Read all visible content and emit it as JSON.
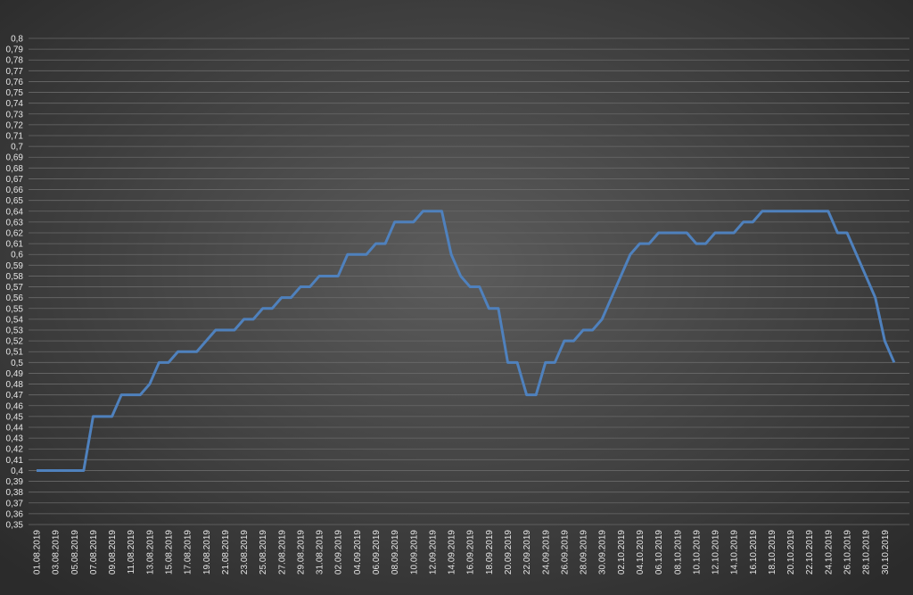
{
  "chart_data": {
    "type": "line",
    "categories": [
      "01.08.2019",
      null,
      "03.08.2019",
      null,
      "05.08.2019",
      null,
      "07.08.2019",
      null,
      "09.08.2019",
      null,
      "11.08.2019",
      null,
      "13.08.2019",
      null,
      "15.08.2019",
      null,
      "17.08.2019",
      null,
      "19.08.2019",
      null,
      "21.08.2019",
      null,
      "23.08.2019",
      null,
      "25.08.2019",
      null,
      "27.08.2019",
      null,
      "29.08.2019",
      null,
      "31.08.2019",
      null,
      "02.09.2019",
      null,
      "04.09.2019",
      null,
      "06.09.2019",
      null,
      "08.09.2019",
      null,
      "10.09.2019",
      null,
      "12.09.2019",
      null,
      "14.09.2019",
      null,
      "16.09.2019",
      null,
      "18.09.2019",
      null,
      "20.09.2019",
      null,
      "22.09.2019",
      null,
      "24.09.2019",
      null,
      "26.09.2019",
      null,
      "28.09.2019",
      null,
      "30.09.2019",
      null,
      "02.10.2019",
      null,
      "04.10.2019",
      null,
      "06.10.2019",
      null,
      "08.10.2019",
      null,
      "10.10.2019",
      null,
      "12.10.2019",
      null,
      "14.10.2019",
      null,
      "16.10.2019",
      null,
      "18.10.2019",
      null,
      "20.10.2019",
      null,
      "22.10.2019",
      null,
      "24.10.2019",
      null,
      "26.10.2019",
      null,
      "28.10.2019",
      null,
      "30.10.2019",
      null
    ],
    "series": [
      {
        "color": "#4f81bd",
        "values": [
          0.4,
          0.4,
          0.4,
          0.4,
          0.4,
          0.4,
          0.45,
          0.45,
          0.45,
          0.47,
          0.47,
          0.47,
          0.48,
          0.5,
          0.5,
          0.51,
          0.51,
          0.51,
          0.52,
          0.53,
          0.53,
          0.53,
          0.54,
          0.54,
          0.55,
          0.55,
          0.56,
          0.56,
          0.57,
          0.57,
          0.58,
          0.58,
          0.58,
          0.6,
          0.6,
          0.6,
          0.61,
          0.61,
          0.63,
          0.63,
          0.63,
          0.64,
          0.64,
          0.64,
          0.6,
          0.58,
          0.57,
          0.57,
          0.55,
          0.55,
          0.5,
          0.5,
          0.47,
          0.47,
          0.5,
          0.5,
          0.52,
          0.52,
          0.53,
          0.53,
          0.54,
          0.56,
          0.58,
          0.6,
          0.61,
          0.61,
          0.62,
          0.62,
          0.62,
          0.62,
          0.61,
          0.61,
          0.62,
          0.62,
          0.62,
          0.63,
          0.63,
          0.64,
          0.64,
          0.64,
          0.64,
          0.64,
          0.64,
          0.64,
          0.64,
          0.62,
          0.62,
          0.6,
          0.58,
          0.56,
          0.52,
          0.5
        ]
      }
    ],
    "ylim": [
      0.35,
      0.8
    ],
    "yticks": [
      {
        "value": 0.8,
        "label": "0,8"
      },
      {
        "value": 0.79,
        "label": "0,79"
      },
      {
        "value": 0.78,
        "label": "0,78"
      },
      {
        "value": 0.77,
        "label": "0,77"
      },
      {
        "value": 0.76,
        "label": "0,76"
      },
      {
        "value": 0.75,
        "label": "0,75"
      },
      {
        "value": 0.74,
        "label": "0,74"
      },
      {
        "value": 0.73,
        "label": "0,73"
      },
      {
        "value": 0.72,
        "label": "0,72"
      },
      {
        "value": 0.71,
        "label": "0,71"
      },
      {
        "value": 0.7,
        "label": "0,7"
      },
      {
        "value": 0.69,
        "label": "0,69"
      },
      {
        "value": 0.68,
        "label": "0,68"
      },
      {
        "value": 0.67,
        "label": "0,67"
      },
      {
        "value": 0.66,
        "label": "0,66"
      },
      {
        "value": 0.65,
        "label": "0,65"
      },
      {
        "value": 0.64,
        "label": "0,64"
      },
      {
        "value": 0.63,
        "label": "0,63"
      },
      {
        "value": 0.62,
        "label": "0,62"
      },
      {
        "value": 0.61,
        "label": "0,61"
      },
      {
        "value": 0.6,
        "label": "0,6"
      },
      {
        "value": 0.59,
        "label": "0,59"
      },
      {
        "value": 0.58,
        "label": "0,58"
      },
      {
        "value": 0.57,
        "label": "0,57"
      },
      {
        "value": 0.56,
        "label": "0,56"
      },
      {
        "value": 0.55,
        "label": "0,55"
      },
      {
        "value": 0.54,
        "label": "0,54"
      },
      {
        "value": 0.53,
        "label": "0,53"
      },
      {
        "value": 0.52,
        "label": "0,52"
      },
      {
        "value": 0.51,
        "label": "0,51"
      },
      {
        "value": 0.5,
        "label": "0,5"
      },
      {
        "value": 0.49,
        "label": "0,49"
      },
      {
        "value": 0.48,
        "label": "0,48"
      },
      {
        "value": 0.47,
        "label": "0,47"
      },
      {
        "value": 0.46,
        "label": "0,46"
      },
      {
        "value": 0.45,
        "label": "0,45"
      },
      {
        "value": 0.44,
        "label": "0,44"
      },
      {
        "value": 0.43,
        "label": "0,43"
      },
      {
        "value": 0.42,
        "label": "0,42"
      },
      {
        "value": 0.41,
        "label": "0,41"
      },
      {
        "value": 0.4,
        "label": "0,4"
      },
      {
        "value": 0.39,
        "label": "0,39"
      },
      {
        "value": 0.38,
        "label": "0,38"
      },
      {
        "value": 0.37,
        "label": "0,37"
      },
      {
        "value": 0.36,
        "label": "0,36"
      },
      {
        "value": 0.35,
        "label": "0,35"
      }
    ],
    "grid": true
  }
}
